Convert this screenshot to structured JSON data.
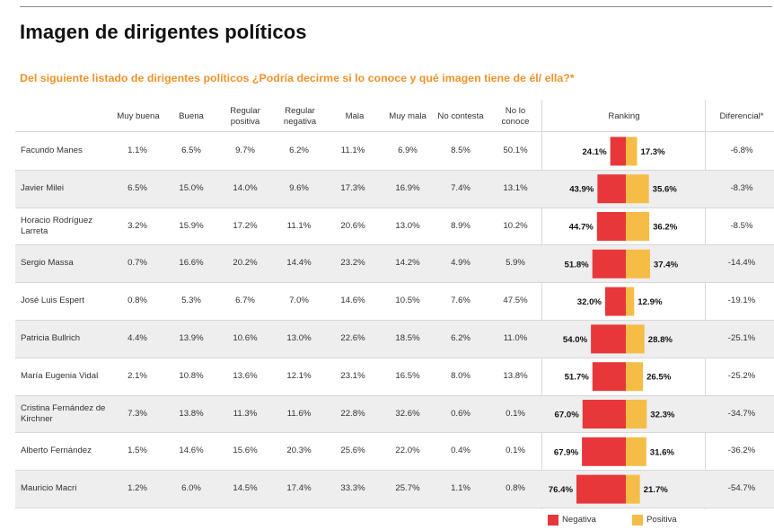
{
  "title": "Imagen de dirigentes políticos",
  "subtitle": "Del siguiente listado de dirigentes políticos ¿Podría decirme si lo conoce y qué imagen tiene de él/ ella?*",
  "headers": {
    "muy_buena": "Muy buena",
    "buena": "Buena",
    "regular_positiva": "Regular positiva",
    "regular_negativa": "Regular negativa",
    "mala": "Mala",
    "muy_mala": "Muy mala",
    "no_contesta": "No contesta",
    "no_lo_conoce": "No lo conoce",
    "ranking": "Ranking",
    "diferencial": "Diferencial*"
  },
  "legend": {
    "negativa": "Negativa",
    "positiva": "Positiva"
  },
  "colors": {
    "negativa": "#e8373a",
    "positiva": "#f5bd45",
    "accent": "#f0932a"
  },
  "rows": [
    {
      "name": "Facundo Manes",
      "muy_buena": "1.1%",
      "buena": "6.5%",
      "regular_positiva": "9.7%",
      "regular_negativa": "6.2%",
      "mala": "11.1%",
      "muy_mala": "6.9%",
      "no_contesta": "8.5%",
      "no_lo_conoce": "50.1%",
      "diferencial": "-6.8%"
    },
    {
      "name": "Javier Milei",
      "muy_buena": "6.5%",
      "buena": "15.0%",
      "regular_positiva": "14.0%",
      "regular_negativa": "9.6%",
      "mala": "17.3%",
      "muy_mala": "16.9%",
      "no_contesta": "7.4%",
      "no_lo_conoce": "13.1%",
      "diferencial": "-8.3%"
    },
    {
      "name": "Horacio Rodríguez Larreta",
      "muy_buena": "3.2%",
      "buena": "15.9%",
      "regular_positiva": "17.2%",
      "regular_negativa": "11.1%",
      "mala": "20.6%",
      "muy_mala": "13.0%",
      "no_contesta": "8.9%",
      "no_lo_conoce": "10.2%",
      "diferencial": "-8.5%"
    },
    {
      "name": "Sergio Massa",
      "muy_buena": "0.7%",
      "buena": "16.6%",
      "regular_positiva": "20.2%",
      "regular_negativa": "14.4%",
      "mala": "23.2%",
      "muy_mala": "14.2%",
      "no_contesta": "4.9%",
      "no_lo_conoce": "5.9%",
      "diferencial": "-14.4%"
    },
    {
      "name": "José Luis Espert",
      "muy_buena": "0.8%",
      "buena": "5.3%",
      "regular_positiva": "6.7%",
      "regular_negativa": "7.0%",
      "mala": "14.6%",
      "muy_mala": "10.5%",
      "no_contesta": "7.6%",
      "no_lo_conoce": "47.5%",
      "diferencial": "-19.1%"
    },
    {
      "name": "Patricia Bullrich",
      "muy_buena": "4.4%",
      "buena": "13.9%",
      "regular_positiva": "10.6%",
      "regular_negativa": "13.0%",
      "mala": "22.6%",
      "muy_mala": "18.5%",
      "no_contesta": "6.2%",
      "no_lo_conoce": "11.0%",
      "diferencial": "-25.1%"
    },
    {
      "name": "María Eugenia Vidal",
      "muy_buena": "2.1%",
      "buena": "10.8%",
      "regular_positiva": "13.6%",
      "regular_negativa": "12.1%",
      "mala": "23.1%",
      "muy_mala": "16.5%",
      "no_contesta": "8.0%",
      "no_lo_conoce": "13.8%",
      "diferencial": "-25.2%"
    },
    {
      "name": "Cristina Fernández de Kirchner",
      "muy_buena": "7.3%",
      "buena": "13.8%",
      "regular_positiva": "11.3%",
      "regular_negativa": "11.6%",
      "mala": "22.8%",
      "muy_mala": "32.6%",
      "no_contesta": "0.6%",
      "no_lo_conoce": "0.1%",
      "diferencial": "-34.7%"
    },
    {
      "name": "Alberto Fernández",
      "muy_buena": "1.5%",
      "buena": "14.6%",
      "regular_positiva": "15.6%",
      "regular_negativa": "20.3%",
      "mala": "25.6%",
      "muy_mala": "22.0%",
      "no_contesta": "0.4%",
      "no_lo_conoce": "0.1%",
      "diferencial": "-36.2%"
    },
    {
      "name": "Mauricio Macri",
      "muy_buena": "1.2%",
      "buena": "6.0%",
      "regular_positiva": "14.5%",
      "regular_negativa": "17.4%",
      "mala": "33.3%",
      "muy_mala": "25.7%",
      "no_contesta": "1.1%",
      "no_lo_conoce": "0.8%",
      "diferencial": "-54.7%"
    }
  ],
  "chart_data": {
    "type": "bar",
    "title": "Ranking",
    "orientation": "horizontal-diverging",
    "categories": [
      "Facundo Manes",
      "Javier Milei",
      "Horacio Rodríguez Larreta",
      "Sergio Massa",
      "José Luis Espert",
      "Patricia Bullrich",
      "María Eugenia Vidal",
      "Cristina Fernández de Kirchner",
      "Alberto Fernández",
      "Mauricio Macri"
    ],
    "series": [
      {
        "name": "Negativa",
        "values": [
          24.1,
          43.9,
          44.7,
          51.8,
          32.0,
          54.0,
          51.7,
          67.0,
          67.9,
          76.4
        ],
        "labels": [
          "24.1%",
          "43.9%",
          "44.7%",
          "51.8%",
          "32.0%",
          "54.0%",
          "51.7%",
          "67.0%",
          "67.9%",
          "76.4%"
        ],
        "color": "#e8373a"
      },
      {
        "name": "Positiva",
        "values": [
          17.3,
          35.6,
          36.2,
          37.4,
          12.9,
          28.8,
          26.5,
          32.3,
          31.6,
          21.7
        ],
        "labels": [
          "17.3%",
          "35.6%",
          "36.2%",
          "37.4%",
          "12.9%",
          "28.8%",
          "26.5%",
          "32.3%",
          "31.6%",
          "21.7%"
        ],
        "color": "#f5bd45"
      }
    ],
    "legend_position": "bottom-right"
  }
}
